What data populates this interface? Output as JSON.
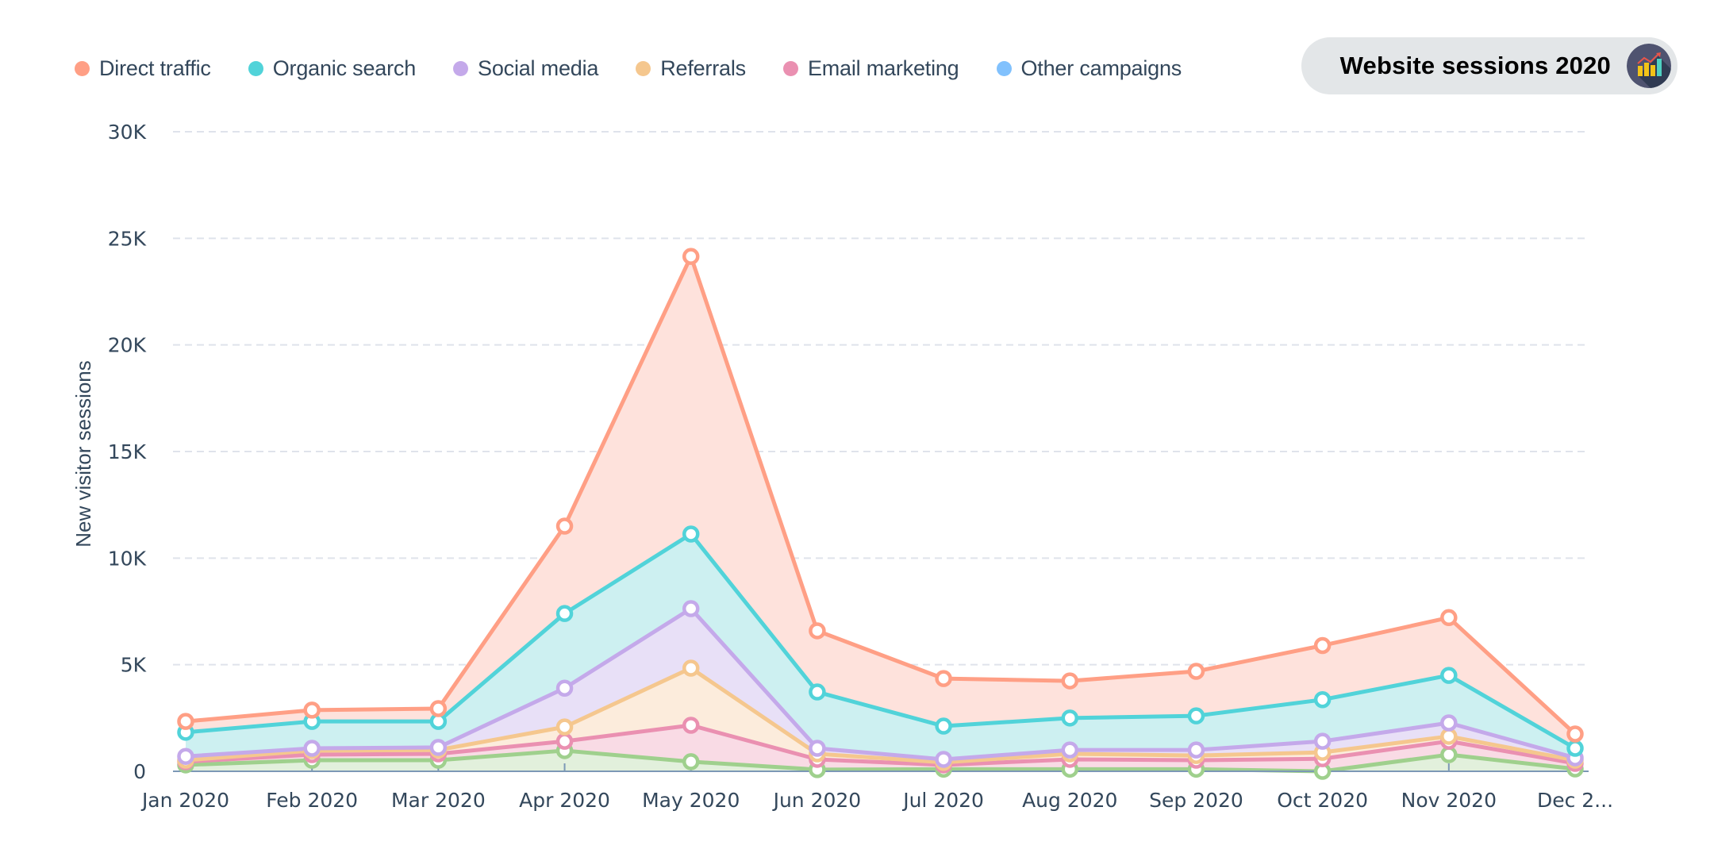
{
  "title_badge": {
    "text": "Website sessions 2020",
    "icon": "bar-chart-trend-icon"
  },
  "legend": [
    {
      "label": "Direct traffic",
      "color": "#ff9f85"
    },
    {
      "label": "Organic search",
      "color": "#51d3d9"
    },
    {
      "label": "Social media",
      "color": "#c4a9ea"
    },
    {
      "label": "Referrals",
      "color": "#f5c78e"
    },
    {
      "label": "Email marketing",
      "color": "#ea90b1"
    },
    {
      "label": "Other campaigns",
      "color": "#81c1fd"
    }
  ],
  "chart_data": {
    "type": "area",
    "stacked": true,
    "title": "Website sessions 2020",
    "xlabel": "",
    "ylabel": "New visitor sessions",
    "ylim": [
      0,
      30000
    ],
    "yticks": [
      0,
      5000,
      10000,
      15000,
      20000,
      25000,
      30000
    ],
    "ytick_labels": [
      "0",
      "5K",
      "10K",
      "15K",
      "20K",
      "25K",
      "30K"
    ],
    "categories": [
      "Jan 2020",
      "Feb 2020",
      "Mar 2020",
      "Apr 2020",
      "May 2020",
      "Jun 2020",
      "Jul 2020",
      "Aug 2020",
      "Sep 2020",
      "Oct 2020",
      "Nov 2020",
      "Dec 2020"
    ],
    "xtick_labels": [
      "Jan 2020",
      "Feb 2020",
      "Mar 2020",
      "Apr 2020",
      "May 2020",
      "Jun 2020",
      "Jul 2020",
      "Aug 2020",
      "Sep 2020",
      "Oct 2020",
      "Nov 2020",
      "Dec 2..."
    ],
    "grid": true,
    "legend_position": "top-left",
    "series": [
      {
        "name": "Other campaigns",
        "line_color": "#9fd08d",
        "fill_color": "#e2f0dc",
        "values": [
          300,
          520,
          520,
          970,
          450,
          80,
          100,
          100,
          100,
          0,
          780,
          110
        ]
      },
      {
        "name": "Email marketing",
        "line_color": "#ea90b1",
        "fill_color": "#f9dbe5",
        "values": [
          150,
          260,
          300,
          440,
          1710,
          480,
          200,
          460,
          420,
          590,
          630,
          260
        ]
      },
      {
        "name": "Referrals",
        "line_color": "#f5c78e",
        "fill_color": "#fcecdc",
        "values": [
          70,
          190,
          180,
          670,
          2680,
          260,
          120,
          260,
          220,
          300,
          230,
          150
        ]
      },
      {
        "name": "Social media",
        "line_color": "#c4a9ea",
        "fill_color": "#e8e0f7",
        "values": [
          180,
          110,
          120,
          1820,
          2790,
          260,
          140,
          180,
          260,
          520,
          630,
          110
        ]
      },
      {
        "name": "Organic search",
        "line_color": "#51d3d9",
        "fill_color": "#cdf0f1",
        "values": [
          1130,
          1260,
          1220,
          3500,
          3500,
          2640,
          1560,
          1500,
          1600,
          1950,
          2230,
          450
        ]
      },
      {
        "name": "Direct traffic",
        "line_color": "#ff9f85",
        "fill_color": "#fee2dc",
        "values": [
          510,
          530,
          600,
          4100,
          13020,
          2870,
          2230,
          1740,
          2090,
          2540,
          2710,
          670
        ]
      }
    ]
  }
}
